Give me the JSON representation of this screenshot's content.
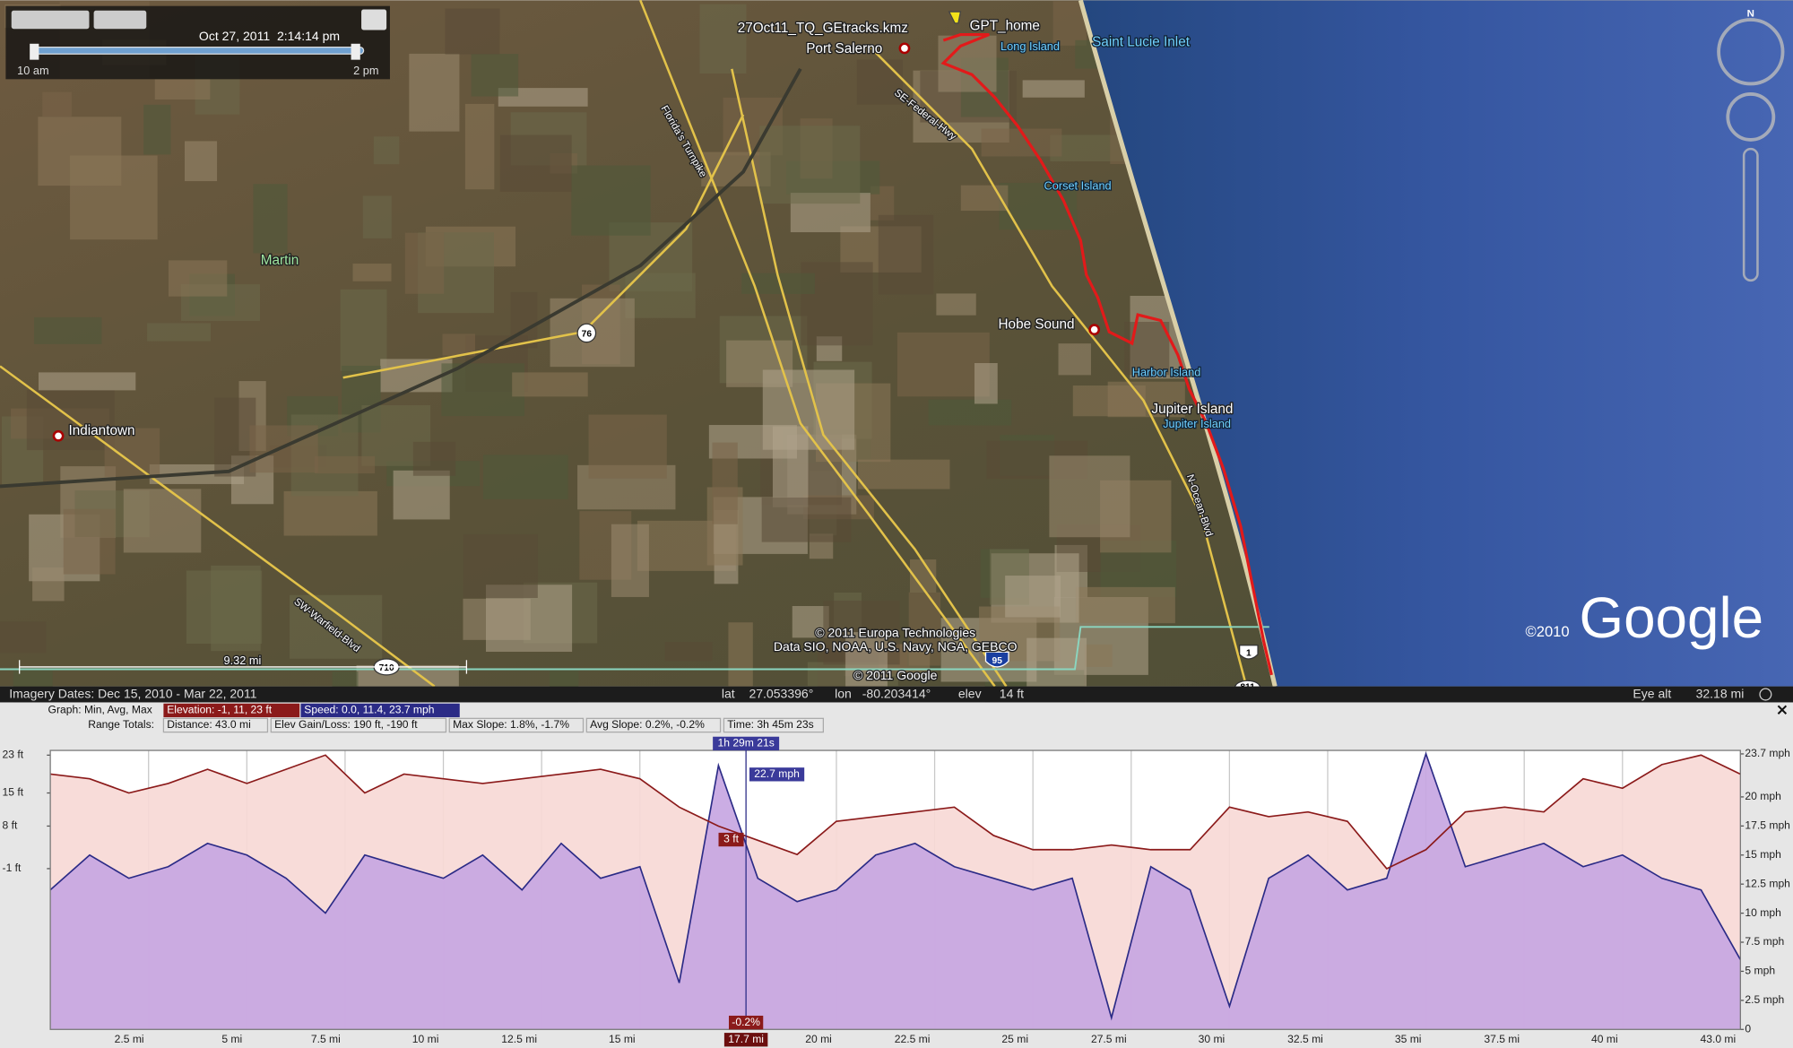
{
  "time_slider": {
    "timestamp": "Oct 27, 2011  2:14:14 pm",
    "start": "10 am",
    "end": "2 pm"
  },
  "compass": "N",
  "map_labels": [
    "27Oct11_TQ_GEtracks.kmz",
    "GPT_home",
    "Port Salerno",
    "Long Island",
    "Saint Lucie Inlet",
    "Corset Island",
    "Hobe Sound",
    "Harbor Island",
    "Jupiter Island",
    "Jupiter Island",
    "Martin",
    "Indiantown",
    "N-Ocean-Blvd",
    "SE-Federal-Hwy",
    "Florida's Turnpike",
    "SW-Warfield-Blvd",
    "76",
    "710",
    "95",
    "1",
    "811"
  ],
  "scale_bar": "9.32 mi",
  "attribution": [
    "© 2011 Europa Technologies",
    "Data SIO, NOAA, U.S. Navy, NGA, GEBCO",
    "© 2011 Google"
  ],
  "logo": {
    "year": "©2010",
    "brand": "Google"
  },
  "status_bar": {
    "imagery_dates": "Imagery Dates: Dec 15, 2010 - Mar 22, 2011",
    "lat_label": "lat",
    "lat": "27.053396°",
    "lon_label": "lon",
    "lon": "-80.203414°",
    "elev_label": "elev",
    "elev": "14 ft",
    "eye_alt_label": "Eye alt",
    "eye_alt": "32.18 mi"
  },
  "profile_summary": {
    "graph_label": "Graph: Min, Avg, Max",
    "range_label": "Range Totals:",
    "totals": [
      "Distance: 43.0 mi",
      "Elev Gain/Loss: 190 ft, -190 ft",
      "Max Slope: 1.8%, -1.7%",
      "Avg Slope: 0.2%, -0.2%",
      "Time: 3h 45m 23s"
    ]
  },
  "chart_data": {
    "type": "line",
    "x": [
      0,
      1,
      2,
      3,
      4,
      5,
      6,
      7,
      8,
      9,
      10,
      11,
      12,
      13,
      14,
      15,
      16,
      17,
      18,
      19,
      20,
      21,
      22,
      23,
      24,
      25,
      26,
      27,
      28,
      29,
      30,
      31,
      32,
      33,
      34,
      35,
      36,
      37,
      38,
      39,
      40,
      41,
      42,
      43
    ],
    "series": [
      {
        "name": "Elevation: -1, 11, 23 ft",
        "color": "#8b1a1a",
        "fill": "#f7d9d6",
        "values": [
          19,
          18,
          15,
          17,
          20,
          17,
          20,
          23,
          15,
          19,
          18,
          17,
          18,
          19,
          20,
          18,
          12,
          8,
          5,
          2,
          9,
          10,
          11,
          12,
          6,
          3,
          3,
          4,
          3,
          3,
          12,
          10,
          11,
          9,
          -1,
          3,
          11,
          12,
          11,
          18,
          16,
          21,
          23,
          19
        ]
      },
      {
        "name": "Speed: 0.0, 11.4, 23.7 mph",
        "color": "#2b2b86",
        "fill": "#c7a6e2",
        "axis": "y2",
        "values": [
          12,
          15,
          13,
          14,
          16,
          15,
          13,
          10,
          15,
          14,
          13,
          15,
          12,
          16,
          13,
          14,
          4,
          22.7,
          13,
          11,
          12,
          15,
          16,
          14,
          13,
          12,
          13,
          1,
          14,
          12,
          2,
          13,
          15,
          12,
          13,
          23.7,
          14,
          15,
          16,
          14,
          15,
          13,
          12,
          6
        ]
      }
    ],
    "xlim": [
      0,
      43
    ],
    "xticks": [
      {
        "value": 2.5,
        "label": "2.5 mi"
      },
      {
        "value": 5,
        "label": "5 mi"
      },
      {
        "value": 7.5,
        "label": "7.5 mi"
      },
      {
        "value": 10,
        "label": "10 mi"
      },
      {
        "value": 12.5,
        "label": "12.5 mi"
      },
      {
        "value": 15,
        "label": "15 mi"
      },
      {
        "value": 20,
        "label": "20 mi"
      },
      {
        "value": 22.5,
        "label": "22.5 mi"
      },
      {
        "value": 25,
        "label": "25 mi"
      },
      {
        "value": 27.5,
        "label": "27.5 mi"
      },
      {
        "value": 30,
        "label": "30 mi"
      },
      {
        "value": 32.5,
        "label": "32.5 mi"
      },
      {
        "value": 35,
        "label": "35 mi"
      },
      {
        "value": 37.5,
        "label": "37.5 mi"
      },
      {
        "value": 40,
        "label": "40 mi"
      },
      {
        "value": 43,
        "label": "43.0 mi"
      }
    ],
    "ylim": [
      -35,
      24
    ],
    "yticks": [
      {
        "value": -1,
        "label": "-1 ft"
      },
      {
        "value": 8,
        "label": "8 ft"
      },
      {
        "value": 15,
        "label": "15 ft"
      },
      {
        "value": 23,
        "label": "23 ft"
      }
    ],
    "y2lim": [
      0,
      24
    ],
    "y2ticks": [
      0,
      {
        "value": 2.5,
        "label": "2.5 mph"
      },
      {
        "value": 5,
        "label": "5 mph"
      },
      {
        "value": 7.5,
        "label": "7.5 mph"
      },
      {
        "value": 10,
        "label": "10 mph"
      },
      {
        "value": 12.5,
        "label": "12.5 mph"
      },
      {
        "value": 15,
        "label": "15 mph"
      },
      {
        "value": 17.5,
        "label": "17.5 mph"
      },
      {
        "value": 20,
        "label": "20 mph"
      },
      {
        "value": 23.7,
        "label": "23.7 mph"
      }
    ],
    "grid": true,
    "cursor": {
      "x": 17.7,
      "x_label": "17.7 mi",
      "time": "1h 29m 21s",
      "speed_label": "22.7 mph",
      "elevation_label": "3 ft",
      "slope_label": "-0.2%"
    }
  }
}
